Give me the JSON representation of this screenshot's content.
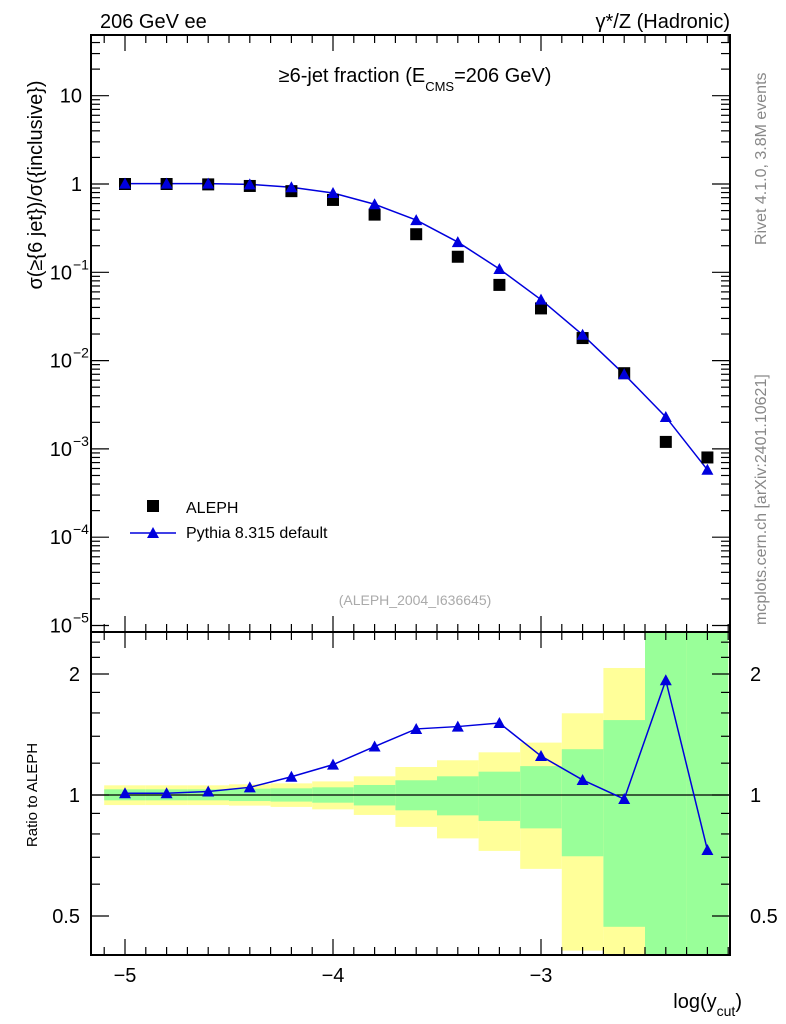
{
  "header": {
    "left": "206 GeV ee",
    "right": "γ*/Z (Hadronic)"
  },
  "side_text": {
    "rivet": "Rivet 4.1.0,  3.8M events",
    "mcplots": "mcplots.cern.ch [arXiv:2401.10621]"
  },
  "chart_data": [
    {
      "type": "line",
      "title_main": "≥6-jet fraction (E",
      "title_sub": "CMS",
      "title_end": "=206 GeV)",
      "ylabel": "σ(≥{6 jet})/σ({inclusive})",
      "yscale": "log",
      "ylim": [
        8e-06,
        50
      ],
      "xlim": [
        -5.16,
        -2.08
      ],
      "yticks": [
        {
          "v": 10,
          "label": "10",
          "exp": ""
        },
        {
          "v": 1,
          "label": "1",
          "exp": ""
        },
        {
          "v": 0.1,
          "label": "10",
          "exp": "−1"
        },
        {
          "v": 0.01,
          "label": "10",
          "exp": "−2"
        },
        {
          "v": 0.001,
          "label": "10",
          "exp": "−3"
        },
        {
          "v": 0.0001,
          "label": "10",
          "exp": "−4"
        },
        {
          "v": 1e-05,
          "label": "10",
          "exp": "−5"
        }
      ],
      "x": [
        -5.0,
        -4.8,
        -4.6,
        -4.4,
        -4.2,
        -4.0,
        -3.8,
        -3.6,
        -3.4,
        -3.2,
        -3.0,
        -2.8,
        -2.6,
        -2.4,
        -2.2
      ],
      "series": [
        {
          "name": "ALEPH",
          "marker": "square",
          "color": "#000000",
          "values": [
            1.0,
            1.0,
            0.99,
            0.95,
            0.83,
            0.66,
            0.45,
            0.27,
            0.15,
            0.072,
            0.039,
            0.018,
            0.0072,
            0.0012,
            0.0008
          ]
        },
        {
          "name": "Pythia 8.315 default",
          "marker": "triangle",
          "color": "#0000dd",
          "values": [
            1.01,
            1.01,
            1.01,
            0.99,
            0.92,
            0.79,
            0.59,
            0.39,
            0.22,
            0.109,
            0.049,
            0.0196,
            0.007,
            0.0023,
            0.00058
          ]
        }
      ],
      "legend": "middle-left",
      "annotation": "(ALEPH_2004_I636645)"
    },
    {
      "type": "line",
      "ylabel": "Ratio to ALEPH",
      "xlabel_main": "log(y",
      "xlabel_sub": "cut",
      "xlabel_end": ")",
      "yscale": "log",
      "ylim": [
        0.4,
        2.5
      ],
      "yticks": [
        {
          "v": 2,
          "label": "2"
        },
        {
          "v": 1,
          "label": "1"
        },
        {
          "v": 0.5,
          "label": "0.5"
        }
      ],
      "xticks": [
        {
          "v": -5,
          "label": "−5"
        },
        {
          "v": -4,
          "label": "−4"
        },
        {
          "v": -3,
          "label": "−3"
        }
      ],
      "x": [
        -5.0,
        -4.8,
        -4.6,
        -4.4,
        -4.2,
        -4.0,
        -3.8,
        -3.6,
        -3.4,
        -3.2,
        -3.0,
        -2.8,
        -2.6,
        -2.4,
        -2.2
      ],
      "ratio": [
        1.01,
        1.01,
        1.02,
        1.045,
        1.11,
        1.19,
        1.32,
        1.46,
        1.48,
        1.51,
        1.25,
        1.09,
        0.977,
        1.93,
        0.73
      ],
      "band_total": [
        [
          0.944,
          1.057
        ],
        [
          0.944,
          1.057
        ],
        [
          0.944,
          1.057
        ],
        [
          0.941,
          1.063
        ],
        [
          0.934,
          1.069
        ],
        [
          0.921,
          1.081
        ],
        [
          0.892,
          1.113
        ],
        [
          0.833,
          1.174
        ],
        [
          0.78,
          1.22
        ],
        [
          0.726,
          1.277
        ],
        [
          0.655,
          1.35
        ],
        [
          0.41,
          1.597
        ],
        [
          0.3,
          2.07
        ],
        [
          0.3,
          3.0
        ],
        [
          0.3,
          3.0
        ]
      ],
      "band_stat": [
        [
          0.97,
          1.033
        ],
        [
          0.97,
          1.033
        ],
        [
          0.97,
          1.033
        ],
        [
          0.966,
          1.037
        ],
        [
          0.963,
          1.039
        ],
        [
          0.957,
          1.045
        ],
        [
          0.942,
          1.059
        ],
        [
          0.916,
          1.088
        ],
        [
          0.89,
          1.113
        ],
        [
          0.862,
          1.143
        ],
        [
          0.826,
          1.18
        ],
        [
          0.704,
          1.3
        ],
        [
          0.47,
          1.536
        ],
        [
          0.3,
          3.0
        ],
        [
          0.3,
          3.0
        ]
      ],
      "band_colors": {
        "total": "#ffff99",
        "stat": "#99ff99"
      }
    }
  ]
}
